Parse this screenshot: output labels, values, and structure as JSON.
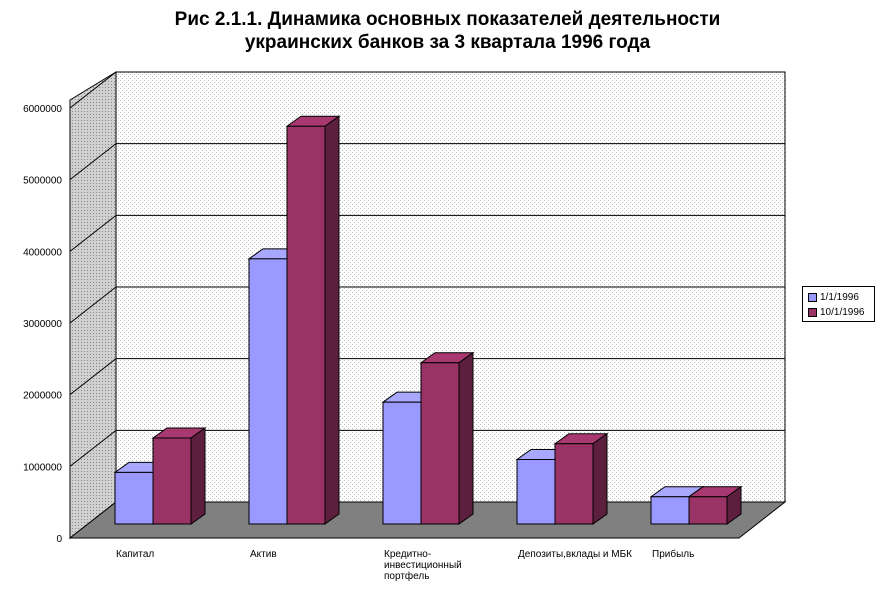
{
  "chart_data": {
    "type": "bar",
    "title_line1": "Рис 2.1.1. Динамика основных показателей деятельности",
    "title_line2": "украинских банков за 3 квартала 1996 года",
    "categories": [
      [
        "Капитал"
      ],
      [
        "Актив"
      ],
      [
        "Кредитно-",
        "инвестиционный",
        "портфель"
      ],
      [
        "Депозиты,вклады и МБК"
      ],
      [
        "Прибыль"
      ]
    ],
    "series": [
      {
        "name": "1/1/1996",
        "values": [
          720000,
          3700000,
          1700000,
          900000,
          380000
        ]
      },
      {
        "name": "10/1/1996",
        "values": [
          1200000,
          5550000,
          2250000,
          1120000,
          380000
        ]
      }
    ],
    "y_ticks": [
      "0",
      "1000000",
      "2000000",
      "3000000",
      "4000000",
      "5000000",
      "6000000"
    ],
    "ylim": [
      0,
      6000000
    ],
    "grid": true,
    "legend": "right",
    "colors": {
      "series1": "#9999ff",
      "series2": "#993366",
      "floor": "#808080",
      "wall": "#d9d9d9"
    }
  }
}
